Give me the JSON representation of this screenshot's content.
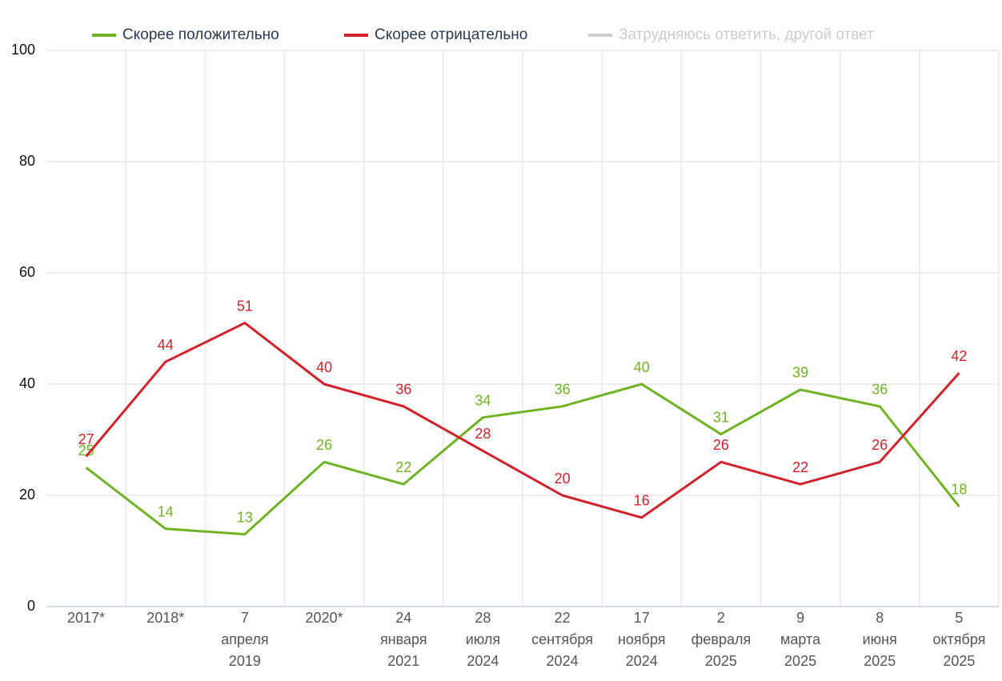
{
  "chart_data": {
    "type": "line",
    "categories": [
      [
        "2017*"
      ],
      [
        "2018*"
      ],
      [
        "7",
        "апреля",
        "2019"
      ],
      [
        "2020*"
      ],
      [
        "24",
        "января",
        "2021"
      ],
      [
        "28",
        "июля",
        "2024"
      ],
      [
        "22",
        "сентября",
        "2024"
      ],
      [
        "17",
        "ноября",
        "2024"
      ],
      [
        "2",
        "февраля",
        "2025"
      ],
      [
        "9",
        "марта",
        "2025"
      ],
      [
        "8",
        "июня",
        "2025"
      ],
      [
        "5",
        "октября",
        "2025"
      ]
    ],
    "series": [
      {
        "name": "Скорее положительно",
        "color": "#6fb324",
        "values": [
          25,
          14,
          13,
          26,
          22,
          34,
          36,
          40,
          31,
          39,
          36,
          18
        ]
      },
      {
        "name": "Скорее отрицательно",
        "color": "#d0222b",
        "values": [
          27,
          44,
          51,
          40,
          36,
          28,
          20,
          16,
          26,
          22,
          26,
          42
        ]
      },
      {
        "name": "Затрудняюсь ответить, другой ответ",
        "color": "#cccccc",
        "hidden": true,
        "values": [
          null,
          null,
          null,
          null,
          null,
          null,
          null,
          null,
          null,
          null,
          null,
          null
        ]
      }
    ],
    "ylim": [
      0,
      100
    ],
    "yticks": [
      0,
      20,
      40,
      60,
      80,
      100
    ],
    "grid": true,
    "legend": "top"
  }
}
